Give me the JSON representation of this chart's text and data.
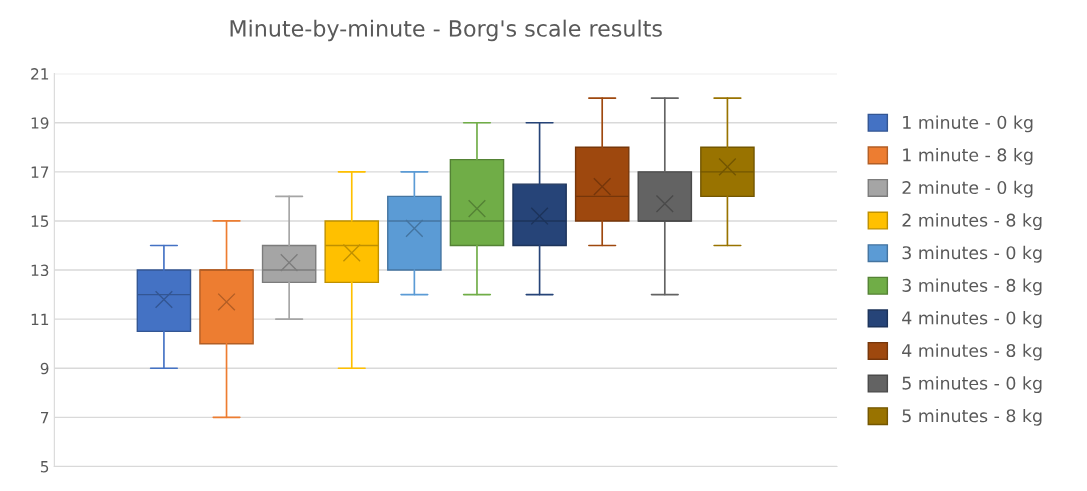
{
  "chart_data": {
    "type": "box",
    "title": "Minute-by-minute - Borg's scale results",
    "categories": [
      null
    ],
    "ylim": [
      5,
      21
    ],
    "yticks": [
      5,
      7,
      9,
      11,
      13,
      15,
      17,
      19,
      21
    ],
    "grid": "y",
    "legend": "right",
    "series": [
      {
        "name": "1 minute - 0 kg",
        "color": "#4472c4",
        "boxes": [
          {
            "low": 9,
            "q1": 10.5,
            "median": 12,
            "q3": 13,
            "high": 14,
            "mean": 11.8
          }
        ]
      },
      {
        "name": "1 minute - 8 kg",
        "color": "#ed7d31",
        "boxes": [
          {
            "low": 7,
            "q1": 10,
            "median": 13,
            "q3": 13,
            "high": 15,
            "mean": 11.7
          }
        ]
      },
      {
        "name": "2 minute - 0 kg",
        "color": "#a5a5a5",
        "boxes": [
          {
            "low": 11,
            "q1": 12.5,
            "median": 13,
            "q3": 14,
            "high": 16,
            "mean": 13.3
          }
        ]
      },
      {
        "name": "2 minutes - 8 kg",
        "color": "#ffc000",
        "boxes": [
          {
            "low": 9,
            "q1": 12.5,
            "median": 14,
            "q3": 15,
            "high": 17,
            "mean": 13.7
          }
        ]
      },
      {
        "name": "3 minutes - 0 kg",
        "color": "#5b9bd5",
        "boxes": [
          {
            "low": 12,
            "q1": 13,
            "median": 15,
            "q3": 16,
            "high": 17,
            "mean": 14.7
          }
        ]
      },
      {
        "name": "3 minutes - 8 kg",
        "color": "#70ad47",
        "boxes": [
          {
            "low": 12,
            "q1": 14,
            "median": 15,
            "q3": 17.5,
            "high": 19,
            "mean": 15.5
          }
        ]
      },
      {
        "name": "4 minutes - 0 kg",
        "color": "#264478",
        "boxes": [
          {
            "low": 12,
            "q1": 14,
            "median": 15,
            "q3": 16.5,
            "high": 19,
            "mean": 15.2
          }
        ]
      },
      {
        "name": "4 minutes - 8 kg",
        "color": "#9e480e",
        "boxes": [
          {
            "low": 14,
            "q1": 15,
            "median": 16,
            "q3": 18,
            "high": 20,
            "mean": 16.4
          }
        ]
      },
      {
        "name": "5 minutes - 0 kg",
        "color": "#636363",
        "boxes": [
          {
            "low": 12,
            "q1": 15,
            "median": 15,
            "q3": 17,
            "high": 20,
            "mean": 15.7
          }
        ]
      },
      {
        "name": "5 minutes - 8 kg",
        "color": "#997300",
        "boxes": [
          {
            "low": 14,
            "q1": 16,
            "median": 17,
            "q3": 18,
            "high": 20,
            "mean": 17.2
          }
        ]
      }
    ]
  }
}
